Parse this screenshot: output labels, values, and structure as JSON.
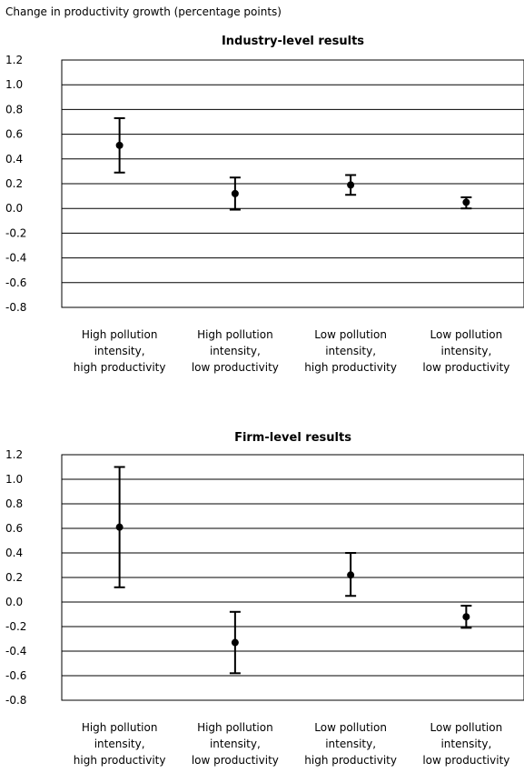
{
  "ylabel": "Change in productivity growth (percentage points)",
  "chart_data": [
    {
      "type": "scatter",
      "title": "Industry-level results",
      "ylabel": "Change in productivity growth (percentage points)",
      "ylim": [
        -0.8,
        1.2
      ],
      "yticks": [
        1.2,
        1.0,
        0.8,
        0.6,
        0.4,
        0.2,
        0.0,
        -0.2,
        -0.4,
        -0.6,
        -0.8
      ],
      "ytick_labels": [
        "1.2",
        "1.0",
        "0.8",
        "0.6",
        "0.4",
        "0.2",
        "0.0",
        "-0.2",
        "-0.4",
        "-0.6",
        "-0.8"
      ],
      "grid": true,
      "categories": [
        [
          "High pollution",
          "intensity,",
          "high productivity"
        ],
        [
          "High pollution",
          "intensity,",
          "low productivity"
        ],
        [
          "Low pollution",
          "intensity,",
          "high productivity"
        ],
        [
          "Low pollution",
          "intensity,",
          "low productivity"
        ]
      ],
      "values": [
        0.51,
        0.12,
        0.19,
        0.05
      ],
      "lower": [
        0.29,
        -0.01,
        0.11,
        0.0
      ],
      "upper": [
        0.73,
        0.25,
        0.27,
        0.09
      ]
    },
    {
      "type": "scatter",
      "title": "Firm-level results",
      "ylim": [
        -0.8,
        1.2
      ],
      "yticks": [
        1.2,
        1.0,
        0.8,
        0.6,
        0.4,
        0.2,
        0.0,
        -0.2,
        -0.4,
        -0.6,
        -0.8
      ],
      "ytick_labels": [
        "1.2",
        "1.0",
        "0.8",
        "0.6",
        "0.4",
        "0.2",
        "0.0",
        "-0.2",
        "-0.4",
        "-0.6",
        "-0.8"
      ],
      "grid": true,
      "categories": [
        [
          "High pollution",
          "intensity,",
          "high productivity"
        ],
        [
          "High pollution",
          "intensity,",
          "low productivity"
        ],
        [
          "Low pollution",
          "intensity,",
          "high productivity"
        ],
        [
          "Low pollution",
          "intensity,",
          "low productivity"
        ]
      ],
      "values": [
        0.61,
        -0.33,
        0.22,
        -0.12
      ],
      "lower": [
        0.12,
        -0.58,
        0.05,
        -0.21
      ],
      "upper": [
        1.1,
        -0.08,
        0.4,
        -0.03
      ]
    }
  ]
}
